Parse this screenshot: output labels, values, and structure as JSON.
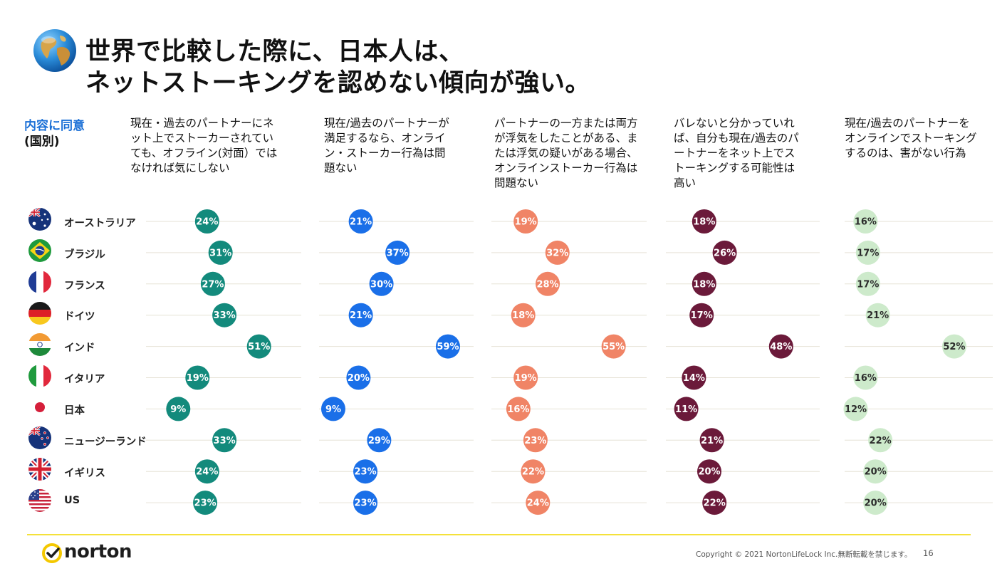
{
  "title": {
    "line1": "世界で比較した際に、日本人は、",
    "line2": "ネットストーキングを認めない傾向が強い。"
  },
  "label_head": {
    "accent": "内容に同意",
    "sub": "(国別)"
  },
  "footer": {
    "brand": "norton",
    "copyright": "Copyright © 2021 NortonLifeLock Inc.無断転載を禁じます。",
    "page": "16"
  },
  "colors": {
    "teal": "#138a7c",
    "blue": "#1a6fe8",
    "salmon": "#f08466",
    "maroon": "#6b1a3a",
    "mint": "#cdeacb",
    "accent": "#1a6fd6",
    "footer_line": "#f4e13a"
  },
  "chart_data": {
    "type": "scatter",
    "title": "",
    "unit": "%",
    "categories": [
      "オーストラリア",
      "ブラジル",
      "フランス",
      "ドイツ",
      "インド",
      "イタリア",
      "日本",
      "ニュージーランド",
      "イギリス",
      "US"
    ],
    "flags": [
      "australia-flag-icon",
      "brazil-flag-icon",
      "france-flag-icon",
      "germany-flag-icon",
      "india-flag-icon",
      "italy-flag-icon",
      "japan-flag-icon",
      "new-zealand-flag-icon",
      "uk-flag-icon",
      "us-flag-icon"
    ],
    "series": [
      {
        "name": "現在・過去のパートナーにネット上でストーカーされていても、オフライン(対面）ではなければ気にしない",
        "header": "現在・過去のパートナーにネ\nット上でストーカーされてい\nても、オフライン(対面）では\nなければ気にしない",
        "color": "#138a7c",
        "values": [
          24,
          31,
          27,
          33,
          51,
          19,
          9,
          33,
          24,
          23
        ]
      },
      {
        "name": "現在/過去のパートナーが満足するなら、オンライン・ストーカー行為は問題ない",
        "header": "現在/過去のパートナーが\n満足するなら、オンライ\nン・ストーカー行為は問\n題ない",
        "color": "#1a6fe8",
        "values": [
          21,
          37,
          30,
          21,
          59,
          20,
          9,
          29,
          23,
          23
        ]
      },
      {
        "name": "パートナーの一方または両方が浮気をしたことがある、または浮気の疑いがある場合、オンラインストーカー行為は問題ない",
        "header": "パートナーの一方または両方\nが浮気をしたことがある、ま\nたは浮気の疑いがある場合、\nオンラインストーカー行為は\n問題ない",
        "color": "#f08466",
        "values": [
          19,
          32,
          28,
          18,
          55,
          19,
          16,
          23,
          22,
          24
        ]
      },
      {
        "name": "バレないと分かっていれば、自分も現在/過去のパートナーをネット上でストーキングする可能性は高い",
        "header": "バレないと分かっていれ\nば、自分も現在/過去のパ\nートナーをネット上でス\nトーキングする可能性は\n高い",
        "color": "#6b1a3a",
        "values": [
          18,
          26,
          18,
          17,
          48,
          14,
          11,
          21,
          20,
          22
        ]
      },
      {
        "name": "現在/過去のパートナーをオンラインでストーキングするのは、害がない行為",
        "header": "現在/過去のパートナーを\nオンラインでストーキング\nするのは、害がない行為",
        "color": "#cdeacb",
        "values": [
          16,
          17,
          17,
          21,
          52,
          16,
          12,
          22,
          20,
          20
        ]
      }
    ]
  }
}
